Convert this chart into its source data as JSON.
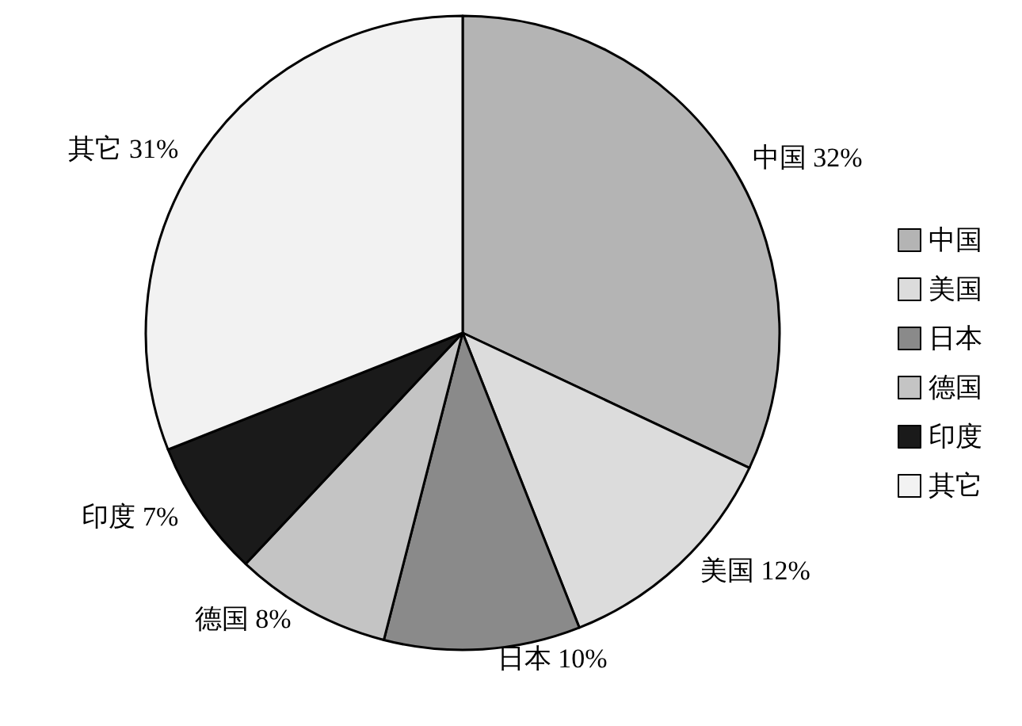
{
  "chart_data": {
    "type": "pie",
    "categories": [
      "中国",
      "美国",
      "日本",
      "德国",
      "印度",
      "其它"
    ],
    "values": [
      32,
      12,
      10,
      8,
      7,
      31
    ],
    "value_labels": [
      "32%",
      "12%",
      "10%",
      "8%",
      "7%",
      "31%"
    ],
    "colors": [
      "#b4b4b4",
      "#dcdcdc",
      "#8a8a8a",
      "#c4c4c4",
      "#1a1a1a",
      "#f2f2f2"
    ],
    "legend": "right"
  }
}
